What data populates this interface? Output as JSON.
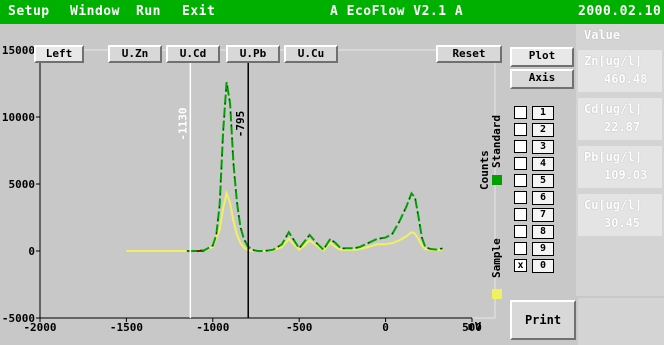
{
  "menubar": {
    "items": [
      "Setup",
      "Window",
      "Run",
      "Exit"
    ],
    "title": "A EcoFlow V2.1 A",
    "date": "2000.02.10"
  },
  "toolbar": {
    "left_label": "Left",
    "buttons": [
      "U.Zn",
      "U.Cd",
      "U.Pb",
      "U.Cu"
    ],
    "reset_label": "Reset",
    "plot_label": "Plot",
    "axis_label": "Axis"
  },
  "right_panel": {
    "header": "Value",
    "entries": [
      {
        "label": "Zn[ug/l]",
        "value": "460.48"
      },
      {
        "label": "Cd[ug/l]",
        "value": "22.87"
      },
      {
        "label": "Pb[ug/l]",
        "value": "109.03"
      },
      {
        "label": "Cu[ug/l]",
        "value": "30.45"
      }
    ],
    "print_label": "Print"
  },
  "sample_list": {
    "rows": [
      {
        "num": "1",
        "checked": false
      },
      {
        "num": "2",
        "checked": false
      },
      {
        "num": "3",
        "checked": false
      },
      {
        "num": "4",
        "checked": false
      },
      {
        "num": "5",
        "checked": false
      },
      {
        "num": "6",
        "checked": false
      },
      {
        "num": "7",
        "checked": false
      },
      {
        "num": "8",
        "checked": false
      },
      {
        "num": "9",
        "checked": false
      },
      {
        "num": "0",
        "checked": true
      }
    ],
    "legend_counts": "Counts",
    "legend_standard": "Standard",
    "legend_sample": "Sample"
  },
  "colors": {
    "menubar": "#00b000",
    "standard": "#00a000",
    "sample": "#f0f060",
    "base_red": "#c00000"
  },
  "chart_data": {
    "type": "line",
    "xlabel": "mV",
    "ylabel": "",
    "xlim": [
      -2000,
      500
    ],
    "ylim": [
      -5000,
      15000
    ],
    "x_ticks": [
      "-2000",
      "-1500",
      "-1000",
      "-500",
      "0",
      "500"
    ],
    "y_ticks": [
      "15000",
      "10000",
      "5000",
      "0",
      "-5000"
    ],
    "markers": [
      {
        "x": -1130,
        "label": "-1130",
        "color": "#ffffff"
      },
      {
        "x": -795,
        "label": "-795",
        "color": "#000000"
      }
    ],
    "series": [
      {
        "name": "Standard",
        "x": [
          -1150,
          -1100,
          -1050,
          -1000,
          -980,
          -960,
          -940,
          -920,
          -900,
          -880,
          -860,
          -840,
          -820,
          -800,
          -780,
          -760,
          -740,
          -720,
          -700,
          -650,
          -600,
          -560,
          -530,
          -500,
          -470,
          -440,
          -400,
          -360,
          -320,
          -290,
          -260,
          -220,
          -180,
          -150,
          -100,
          -50,
          0,
          40,
          80,
          120,
          150,
          170,
          190,
          210,
          230,
          260,
          300,
          330
        ],
        "y": [
          0,
          0,
          50,
          400,
          1200,
          3500,
          9000,
          12600,
          11000,
          6500,
          3600,
          1800,
          900,
          400,
          150,
          50,
          0,
          0,
          0,
          100,
          500,
          1400,
          800,
          200,
          700,
          1200,
          600,
          100,
          900,
          600,
          200,
          200,
          200,
          300,
          600,
          900,
          1000,
          1300,
          2200,
          3300,
          4300,
          4000,
          2600,
          1000,
          300,
          150,
          100,
          200
        ]
      },
      {
        "name": "Sample",
        "x": [
          -1500,
          -1300,
          -1150,
          -1100,
          -1050,
          -1000,
          -960,
          -940,
          -920,
          -900,
          -880,
          -860,
          -840,
          -820,
          -800,
          -780,
          -760,
          -740,
          -700,
          -650,
          -600,
          -560,
          -530,
          -500,
          -470,
          -440,
          -400,
          -360,
          -320,
          -290,
          -260,
          -220,
          -180,
          -150,
          -100,
          -50,
          0,
          40,
          80,
          120,
          150,
          170,
          190,
          210,
          230,
          260,
          300,
          330
        ],
        "y": [
          0,
          0,
          0,
          0,
          50,
          300,
          1600,
          3200,
          4300,
          3600,
          2200,
          1200,
          600,
          250,
          80,
          20,
          0,
          0,
          0,
          50,
          300,
          900,
          500,
          100,
          400,
          800,
          400,
          50,
          600,
          300,
          100,
          100,
          100,
          150,
          300,
          500,
          500,
          600,
          800,
          1100,
          1400,
          1300,
          900,
          400,
          150,
          100,
          50,
          100
        ]
      }
    ],
    "base_red": {
      "x": [
        -1150,
        -1050
      ],
      "y": [
        0,
        0
      ]
    }
  }
}
